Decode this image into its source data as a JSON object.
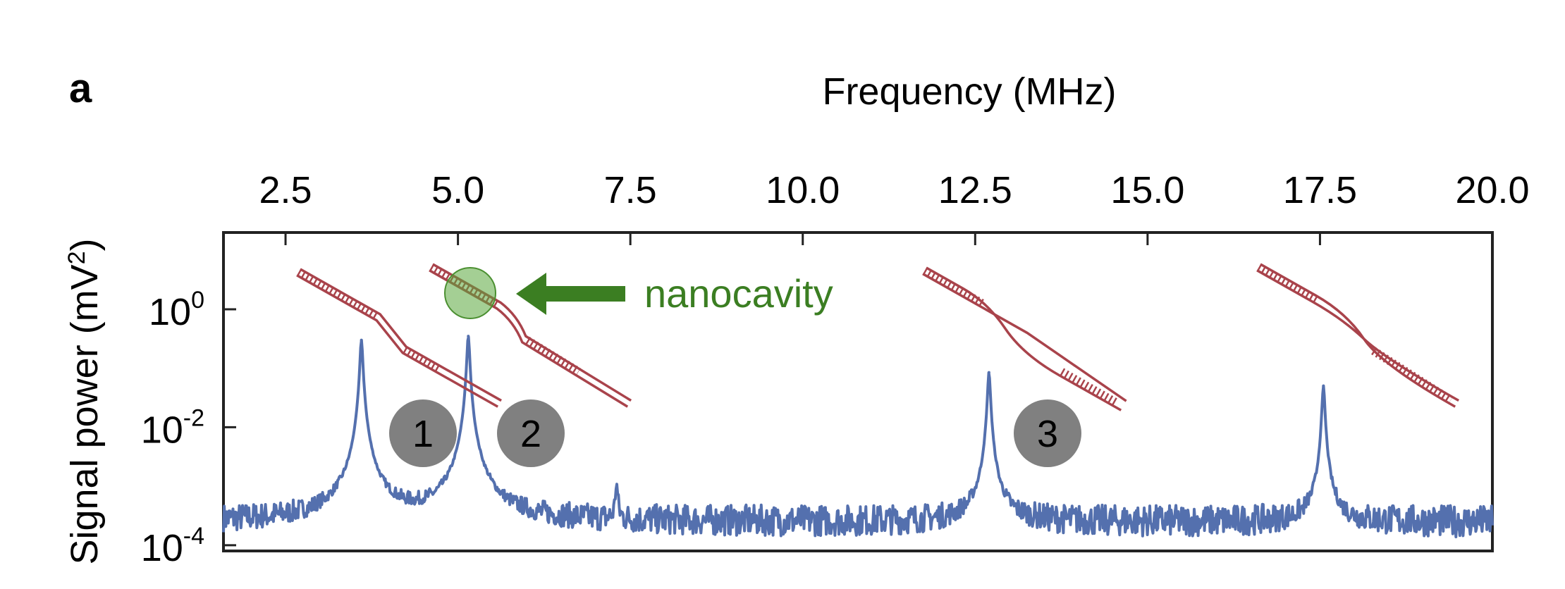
{
  "panel_label": "a",
  "chart_data": {
    "type": "line",
    "title": "",
    "xlabel": "Frequency (MHz)",
    "xaxis_position": "top",
    "xlim": [
      1.6,
      20.0
    ],
    "xticks": [
      2.5,
      5.0,
      7.5,
      10.0,
      12.5,
      15.0,
      17.5,
      20.0
    ],
    "xtick_labels": [
      "2.5",
      "5.0",
      "7.5",
      "10.0",
      "12.5",
      "15.0",
      "17.5",
      "20.0"
    ],
    "ylabel": "Signal power (mV",
    "ylabel_sup": "2",
    "ylabel_close": ")",
    "yscale": "log",
    "ylim": [
      8e-05,
      20
    ],
    "yticks": [
      {
        "base": "10",
        "exp": "0"
      },
      {
        "base": "10",
        "exp": "-2"
      },
      {
        "base": "10",
        "exp": "-4"
      }
    ],
    "ytick_values": [
      1,
      0.01,
      0.0001
    ],
    "grid": false,
    "line_color": "#5470ae",
    "noise_floor": 0.00025,
    "series": [
      {
        "x": [
          3.6,
          5.15,
          7.3,
          12.7,
          17.55
        ],
        "y": [
          0.3,
          0.35,
          0.0008,
          0.085,
          0.05
        ]
      }
    ],
    "annotations": {
      "mode_labels": [
        "1",
        "2",
        "3"
      ],
      "nanocavity_label": "nanocavity",
      "nanocavity_color": "#3b7e22",
      "beam_color": "#a9434b",
      "badge_color": "#808080"
    }
  }
}
